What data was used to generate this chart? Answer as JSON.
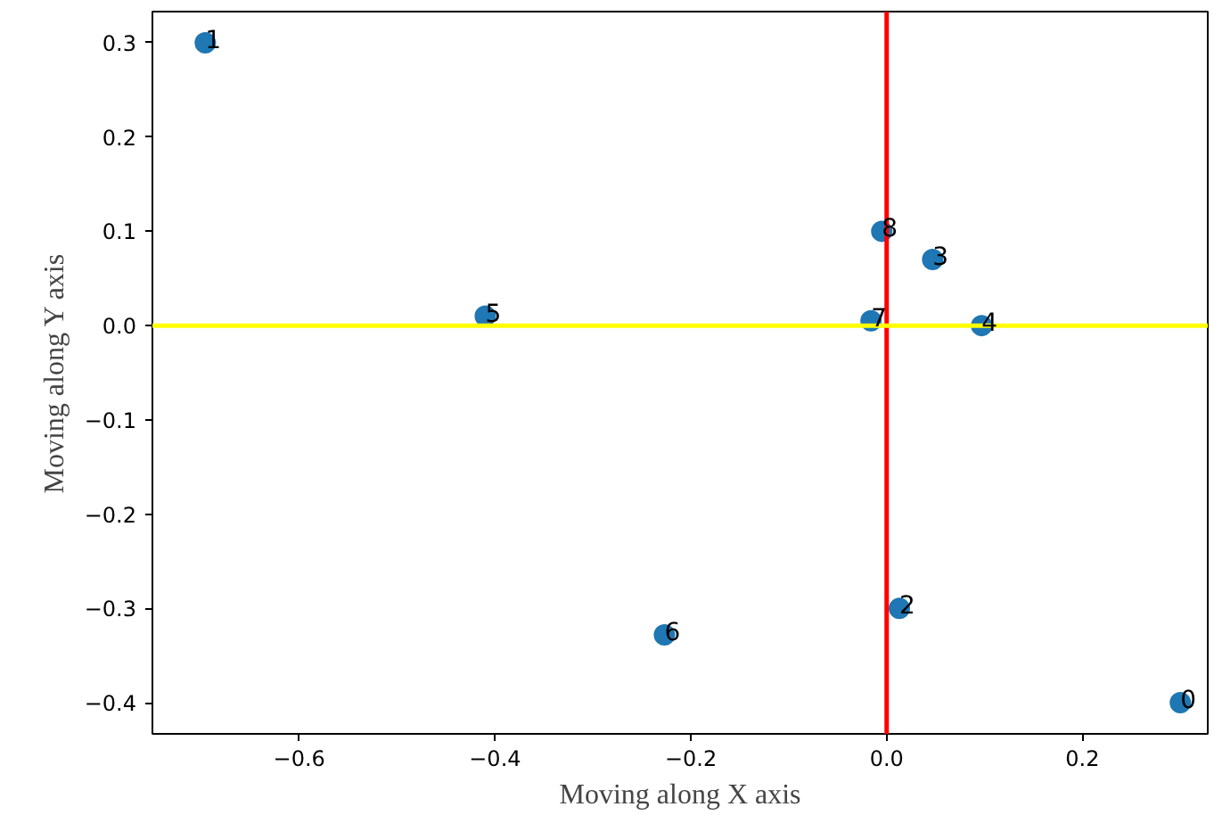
{
  "chart_data": {
    "type": "scatter",
    "xlabel": "Moving along X axis",
    "ylabel": "Moving along Y axis",
    "x": [
      0.3,
      -0.696,
      0.013,
      0.047,
      0.097,
      -0.41,
      -0.227,
      -0.016,
      -0.005
    ],
    "series": [
      {
        "color": "#1f77b4",
        "values": [
          -0.4,
          0.3,
          -0.3,
          0.07,
          0.0,
          0.01,
          -0.328,
          0.005,
          0.1
        ]
      }
    ],
    "annotations": [
      {
        "text": "0",
        "x": 0.3,
        "y": -0.4
      },
      {
        "text": "1",
        "x": -0.696,
        "y": 0.3
      },
      {
        "text": "2",
        "x": 0.013,
        "y": -0.3
      },
      {
        "text": "3",
        "x": 0.047,
        "y": 0.07
      },
      {
        "text": "4",
        "x": 0.097,
        "y": 0.0
      },
      {
        "text": "5",
        "x": -0.41,
        "y": 0.01
      },
      {
        "text": "6",
        "x": -0.227,
        "y": -0.328
      },
      {
        "text": "7",
        "x": -0.016,
        "y": 0.005
      },
      {
        "text": "8",
        "x": -0.005,
        "y": 0.1
      }
    ],
    "ref_lines": [
      {
        "axis": "x",
        "value": 0,
        "color": "#ff0000"
      },
      {
        "axis": "y",
        "value": 0,
        "color": "#ffff00"
      }
    ],
    "xlim": [
      -0.75,
      0.328
    ],
    "ylim": [
      -0.433,
      0.333
    ],
    "xticks": [
      {
        "value": -0.6,
        "label": "−0.6"
      },
      {
        "value": -0.4,
        "label": "−0.4"
      },
      {
        "value": -0.2,
        "label": "−0.2"
      },
      {
        "value": 0,
        "label": "0.0"
      },
      {
        "value": 0.2,
        "label": "0.2"
      }
    ],
    "yticks": [
      {
        "value": -0.4,
        "label": "−0.4"
      },
      {
        "value": -0.3,
        "label": "−0.3"
      },
      {
        "value": -0.2,
        "label": "−0.2"
      },
      {
        "value": -0.1,
        "label": "−0.1"
      },
      {
        "value": 0,
        "label": "0.0"
      },
      {
        "value": 0.1,
        "label": "0.1"
      },
      {
        "value": 0.2,
        "label": "0.2"
      },
      {
        "value": 0.3,
        "label": "0.3"
      }
    ],
    "grid": false,
    "marker": "circle"
  }
}
